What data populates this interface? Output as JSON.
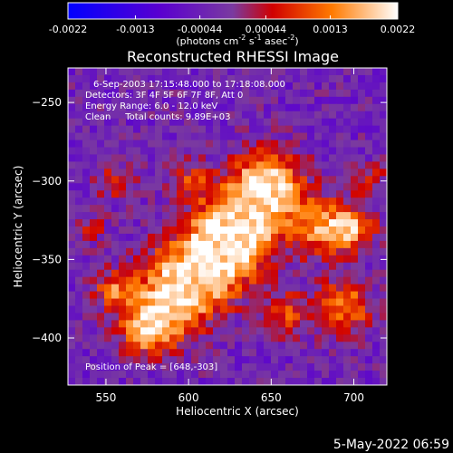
{
  "chart_data": {
    "type": "heatmap",
    "title": "Reconstructed RHESSI Image",
    "xlabel": "Heliocentric X (arcsec)",
    "ylabel": "Heliocentric Y (arcsec)",
    "xlim": [
      527,
      720
    ],
    "ylim": [
      -430,
      -228
    ],
    "x_ticks": [
      550,
      600,
      650,
      700
    ],
    "y_ticks": [
      -250,
      -300,
      -350,
      -400
    ],
    "colorbar": {
      "ticks": [
        "-0.0022",
        "-0.0013",
        "-0.00044",
        "0.00044",
        "0.0013",
        "0.0022"
      ],
      "range": [
        -0.0022,
        0.0022
      ],
      "label_main": "(photons cm",
      "label_exp1": "-2",
      "label_mid": " s",
      "label_exp2": "-1",
      "label_tail": " asec",
      "label_exp3": "-2",
      "label_end": ")"
    },
    "annotations": [
      "6-Sep-2003 17:15:48.000 to 17:18:08.000",
      "Detectors: 3F 4F 5F 6F 7F 8F, Att 0",
      "Energy Range: 6.0 - 12.0 keV",
      "Clean     Total counts: 9.89E+03"
    ],
    "peak_label": "Position of Peak = [648,-303]",
    "peak_position": [
      648,
      -303
    ],
    "timestamp": "5-May-2022 06:59"
  }
}
